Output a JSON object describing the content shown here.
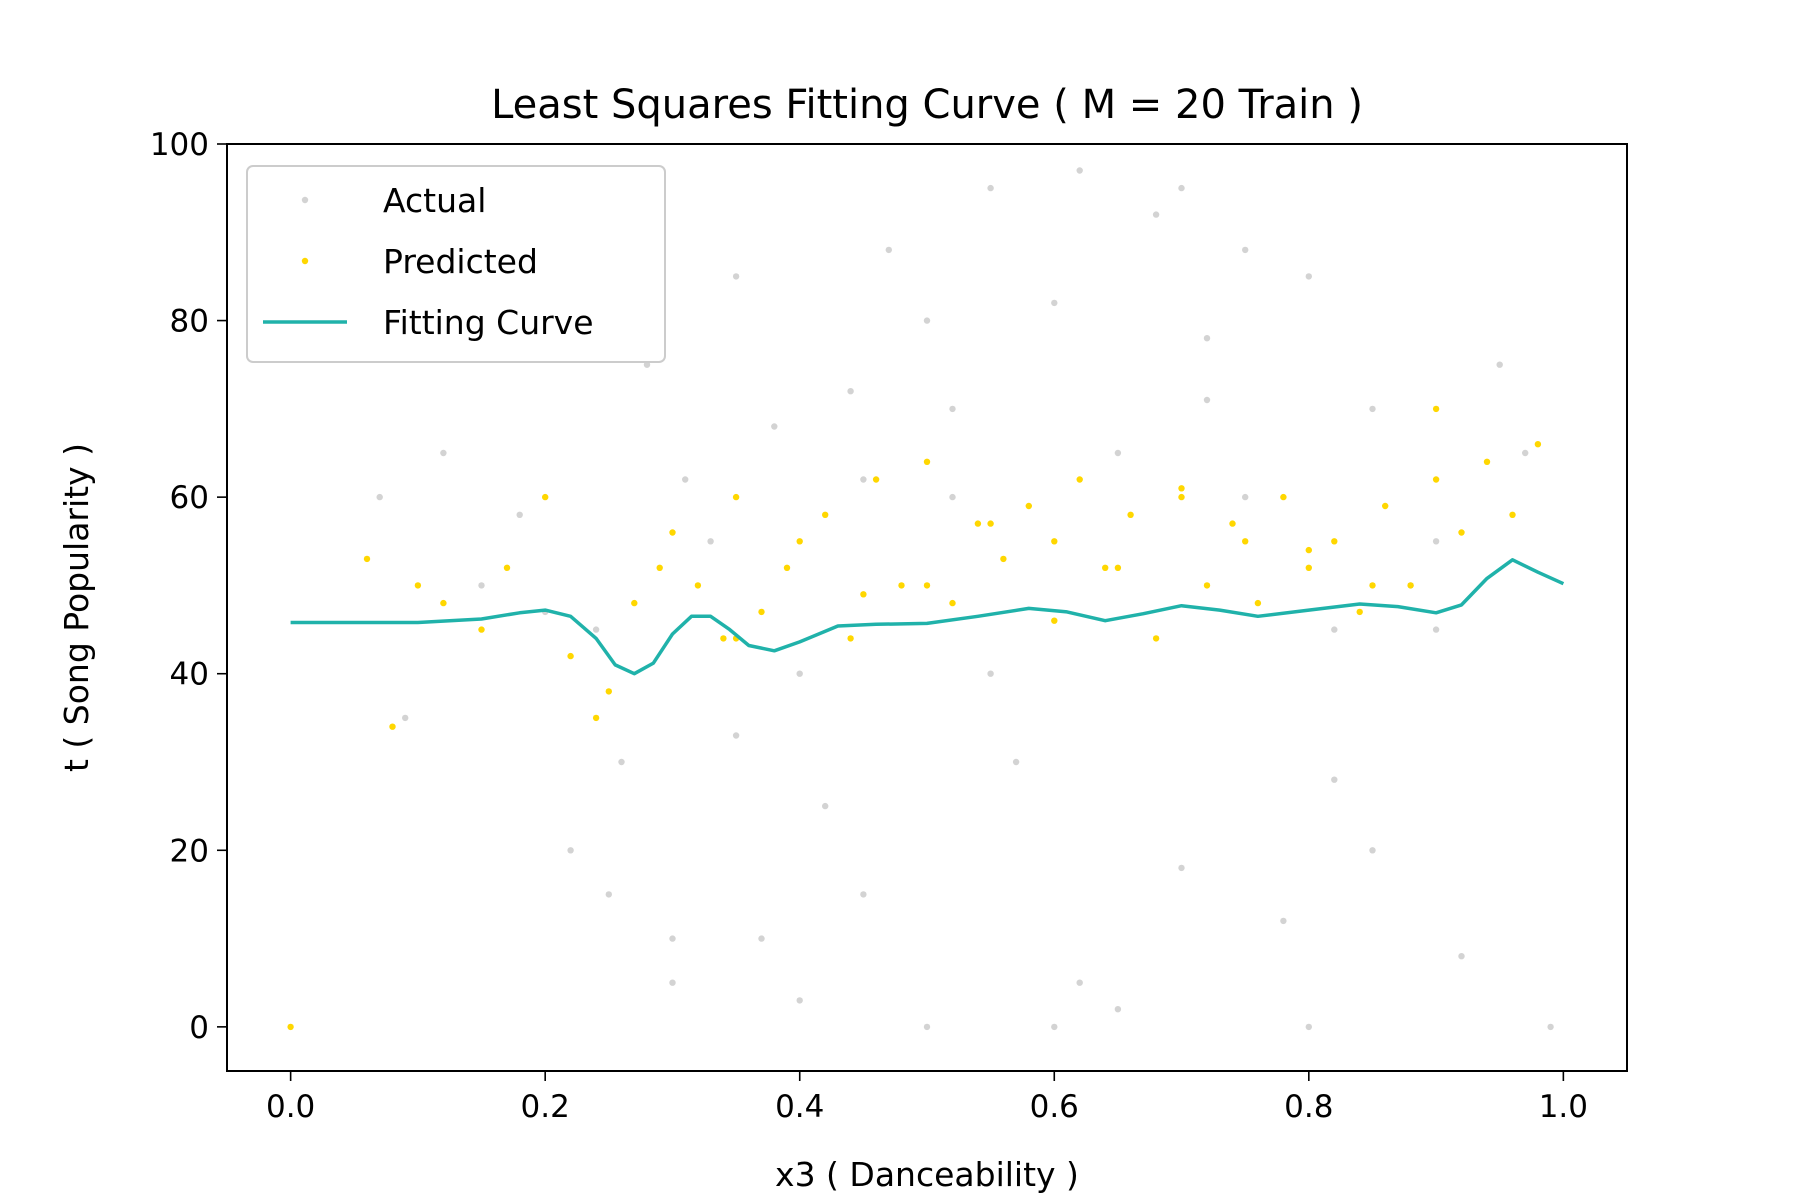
{
  "chart_data": {
    "type": "scatter",
    "title": "Least Squares Fitting Curve ( M = 20 Train )",
    "xlabel": "x3 ( Danceability )",
    "ylabel": "t ( Song Popularity )",
    "xlim": [
      -0.05,
      1.05
    ],
    "ylim": [
      -5,
      100
    ],
    "xticks": [
      0.0,
      0.2,
      0.4,
      0.6,
      0.8,
      1.0
    ],
    "xtick_labels": [
      "0.0",
      "0.2",
      "0.4",
      "0.6",
      "0.8",
      "1.0"
    ],
    "yticks": [
      0,
      20,
      40,
      60,
      80,
      100
    ],
    "ytick_labels": [
      "0",
      "20",
      "40",
      "60",
      "80",
      "100"
    ],
    "grid": false,
    "legend": {
      "position": "upper-left",
      "entries": [
        {
          "label": "Actual",
          "kind": "points",
          "color": "#d3d3d3"
        },
        {
          "label": "Predicted",
          "kind": "points",
          "color": "#ffd700"
        },
        {
          "label": "Fitting Curve",
          "kind": "line",
          "color": "#20b2aa"
        }
      ]
    },
    "series": [
      {
        "name": "Actual",
        "kind": "scatter",
        "color": "#d3d3d3",
        "x": [
          0.07,
          0.09,
          0.12,
          0.15,
          0.18,
          0.2,
          0.22,
          0.24,
          0.26,
          0.28,
          0.3,
          0.31,
          0.33,
          0.35,
          0.37,
          0.38,
          0.4,
          0.42,
          0.44,
          0.45,
          0.47,
          0.5,
          0.52,
          0.55,
          0.57,
          0.6,
          0.62,
          0.65,
          0.68,
          0.7,
          0.72,
          0.75,
          0.78,
          0.8,
          0.82,
          0.85,
          0.88,
          0.9,
          0.92,
          0.95,
          0.97,
          0.99,
          0.25,
          0.3,
          0.4,
          0.5,
          0.6,
          0.7,
          0.8,
          0.9,
          0.55,
          0.65,
          0.75,
          0.45,
          0.85,
          0.35,
          0.62,
          0.72,
          0.82,
          0.52
        ],
        "y": [
          60,
          35,
          65,
          50,
          58,
          47,
          20,
          45,
          30,
          75,
          5,
          62,
          55,
          85,
          10,
          68,
          40,
          25,
          72,
          15,
          88,
          0,
          70,
          95,
          30,
          82,
          5,
          65,
          92,
          18,
          78,
          60,
          12,
          85,
          28,
          70,
          50,
          45,
          8,
          75,
          65,
          0,
          15,
          10,
          3,
          80,
          0,
          95,
          0,
          55,
          40,
          2,
          88,
          62,
          20,
          33,
          97,
          71,
          45,
          60
        ]
      },
      {
        "name": "Predicted",
        "kind": "scatter",
        "color": "#ffd700",
        "x": [
          0.0,
          0.06,
          0.08,
          0.1,
          0.12,
          0.15,
          0.17,
          0.2,
          0.22,
          0.24,
          0.25,
          0.27,
          0.29,
          0.3,
          0.32,
          0.34,
          0.35,
          0.37,
          0.39,
          0.4,
          0.42,
          0.44,
          0.46,
          0.48,
          0.5,
          0.52,
          0.54,
          0.56,
          0.58,
          0.6,
          0.62,
          0.64,
          0.66,
          0.68,
          0.7,
          0.72,
          0.74,
          0.76,
          0.78,
          0.8,
          0.82,
          0.84,
          0.86,
          0.88,
          0.9,
          0.92,
          0.94,
          0.96,
          0.98,
          0.5,
          0.6,
          0.7,
          0.8,
          0.45,
          0.55,
          0.65,
          0.75,
          0.85,
          0.35,
          0.9
        ],
        "y": [
          0,
          53,
          34,
          50,
          48,
          45,
          52,
          60,
          42,
          35,
          38,
          48,
          52,
          56,
          50,
          44,
          60,
          47,
          52,
          55,
          58,
          44,
          62,
          50,
          64,
          48,
          57,
          53,
          59,
          46,
          62,
          52,
          58,
          44,
          61,
          50,
          57,
          48,
          60,
          52,
          55,
          47,
          59,
          50,
          62,
          56,
          64,
          58,
          66,
          50,
          55,
          60,
          54,
          49,
          57,
          52,
          55,
          50,
          44,
          70
        ]
      },
      {
        "name": "Fitting Curve",
        "kind": "line",
        "color": "#20b2aa",
        "x": [
          0.0,
          0.05,
          0.1,
          0.15,
          0.18,
          0.2,
          0.22,
          0.24,
          0.255,
          0.27,
          0.285,
          0.3,
          0.315,
          0.33,
          0.345,
          0.36,
          0.38,
          0.4,
          0.43,
          0.46,
          0.5,
          0.54,
          0.58,
          0.61,
          0.64,
          0.67,
          0.7,
          0.73,
          0.76,
          0.8,
          0.84,
          0.87,
          0.9,
          0.92,
          0.94,
          0.96,
          0.98,
          1.0
        ],
        "y": [
          45.8,
          45.8,
          45.8,
          46.2,
          46.9,
          47.2,
          46.5,
          44.0,
          41.0,
          40.0,
          41.2,
          44.5,
          46.5,
          46.5,
          45.0,
          43.2,
          42.6,
          43.6,
          45.4,
          45.6,
          45.7,
          46.5,
          47.4,
          47.0,
          46.0,
          46.8,
          47.7,
          47.2,
          46.5,
          47.2,
          47.9,
          47.6,
          46.9,
          47.8,
          50.8,
          52.9,
          51.5,
          50.2
        ]
      }
    ]
  }
}
